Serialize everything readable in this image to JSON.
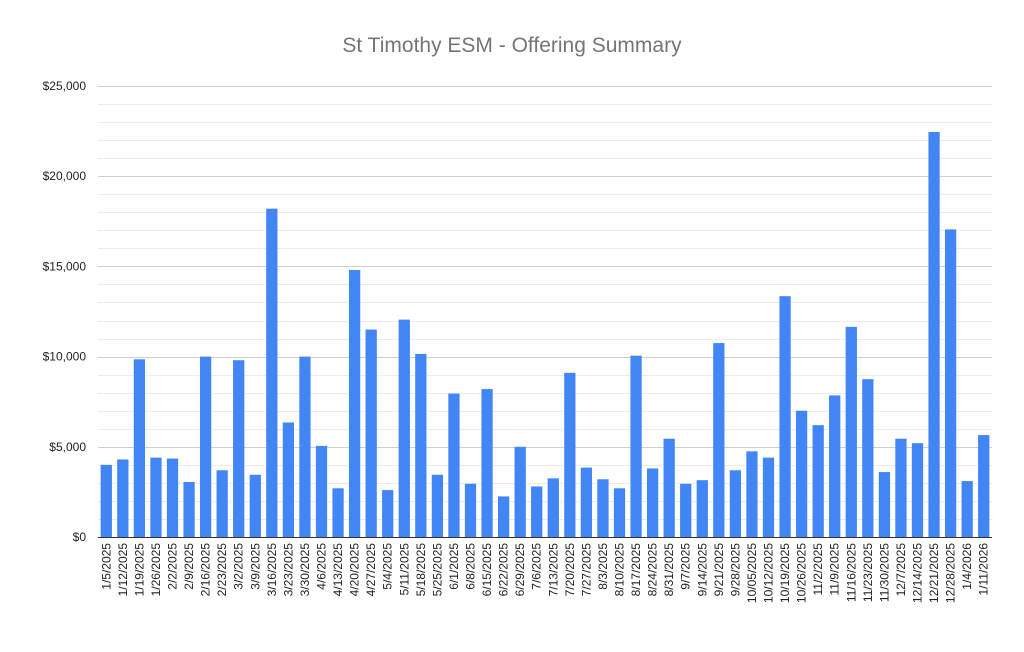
{
  "chart_data": {
    "type": "bar",
    "title": "St Timothy ESM - Offering Summary",
    "xlabel": "",
    "ylabel": "",
    "ylim": [
      0,
      25000
    ],
    "y_ticks": [
      0,
      5000,
      10000,
      15000,
      20000,
      25000
    ],
    "y_tick_labels": [
      "$0",
      "$5,000",
      "$10,000",
      "$15,000",
      "$20,000",
      "$25,000"
    ],
    "grid": true,
    "legend": "none",
    "bar_color": "#4285f4",
    "categories": [
      "1/5/2025",
      "1/12/2025",
      "1/19/2025",
      "1/26/2025",
      "2/2/2025",
      "2/9/2025",
      "2/16/2025",
      "2/23/2025",
      "3/2/2025",
      "3/9/2025",
      "3/16/2025",
      "3/23/2025",
      "3/30/2025",
      "4/6/2025",
      "4/13/2025",
      "4/20/2025",
      "4/27/2025",
      "5/4/2025",
      "5/11/2025",
      "5/18/2025",
      "5/25/2025",
      "6/1/2025",
      "6/8/2025",
      "6/15/2025",
      "6/22/2025",
      "6/29/2025",
      "7/6/2025",
      "7/13/2025",
      "7/20/2025",
      "7/27/2025",
      "8/3/2025",
      "8/10/2025",
      "8/17/2025",
      "8/24/2025",
      "8/31/2025",
      "9/7/2025",
      "9/14/2025",
      "9/21/2025",
      "9/28/2025",
      "10/05/2025",
      "10/12/2025",
      "10/19/2025",
      "10/26/2025",
      "11/2/2025",
      "11/9/2025",
      "11/16/2025",
      "11/23/2025",
      "11/30/2025",
      "12/7/2025",
      "12/14/2025",
      "12/21/2025",
      "12/28/2025",
      "1/4/2026",
      "1/11/2026"
    ],
    "values": [
      4000,
      4300,
      9850,
      4400,
      4350,
      3050,
      10000,
      3700,
      9800,
      3450,
      18200,
      6350,
      10000,
      5050,
      2700,
      14800,
      11500,
      2600,
      12050,
      10150,
      3450,
      7950,
      2950,
      8200,
      2250,
      5000,
      2800,
      3250,
      9100,
      3850,
      3200,
      2700,
      10050,
      3800,
      5450,
      2950,
      3150,
      10750,
      3700,
      4750,
      4400,
      13350,
      7000,
      6200,
      7850,
      11650,
      8750,
      3600,
      5450,
      5200,
      22450,
      17050,
      3100,
      5650
    ]
  }
}
